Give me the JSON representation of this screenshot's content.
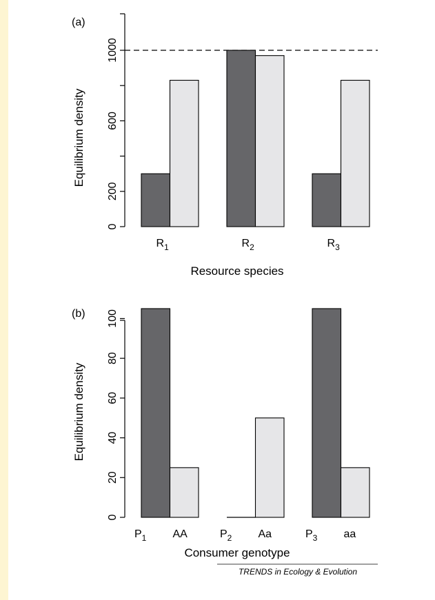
{
  "colors": {
    "background_strip": "#fdf5d2",
    "panel_background": "#ffffff",
    "dark_bar": "#666669",
    "light_bar": "#e6e6e8",
    "stroke": "#000000"
  },
  "chart_data": [
    {
      "type": "bar",
      "panel_label": "(a)",
      "xlabel": "Resource species",
      "ylabel": "Equilibrium density",
      "ylim": [
        0,
        1000
      ],
      "yticks": [
        "0",
        "200",
        "600",
        "1000"
      ],
      "yticks_values": [
        0,
        200,
        600,
        1000
      ],
      "categories": [
        "R1",
        "R2",
        "R3"
      ],
      "category_labels": [
        {
          "main": "R",
          "sub": "1"
        },
        {
          "main": "R",
          "sub": "2"
        },
        {
          "main": "R",
          "sub": "3"
        }
      ],
      "reference_line": 1000,
      "series": [
        {
          "values": [
            300,
            1000,
            300
          ],
          "color": "#666669"
        },
        {
          "values": [
            830,
            970,
            830
          ],
          "color": "#e6e6e8"
        }
      ]
    },
    {
      "type": "bar",
      "panel_label": "(b)",
      "xlabel": "Consumer genotype",
      "ylabel": "Equilibrium density",
      "ylim": [
        0,
        105
      ],
      "yticks": [
        "0",
        "20",
        "40",
        "60",
        "80",
        "100"
      ],
      "yticks_values": [
        0,
        20,
        40,
        60,
        80,
        100
      ],
      "categories": [
        "P1 AA",
        "P2 Aa",
        "P3 aa"
      ],
      "category_labels": [
        [
          {
            "main": "P",
            "sub": "1"
          },
          {
            "main": "AA",
            "sub": ""
          }
        ],
        [
          {
            "main": "P",
            "sub": "2"
          },
          {
            "main": "Aa",
            "sub": ""
          }
        ],
        [
          {
            "main": "P",
            "sub": "3"
          },
          {
            "main": "aa",
            "sub": ""
          }
        ]
      ],
      "series": [
        {
          "values": [
            105,
            0,
            105
          ],
          "color": "#666669"
        },
        {
          "values": [
            25,
            50,
            25
          ],
          "color": "#e6e6e8"
        }
      ]
    }
  ],
  "footer": {
    "credit": "TRENDS in Ecology & Evolution"
  }
}
